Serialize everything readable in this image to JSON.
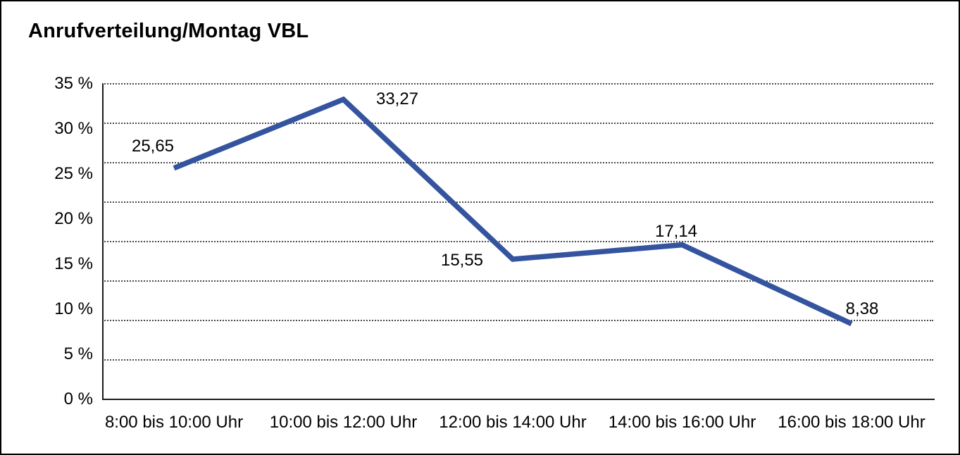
{
  "window": {
    "background_color": "#ffffff",
    "border_color": "#000000"
  },
  "chart_data": {
    "type": "line",
    "title": "Anrufverteilung/Montag VBL",
    "categories": [
      "8:00 bis 10:00 Uhr",
      "10:00 bis 12:00 Uhr",
      "12:00 bis 14:00 Uhr",
      "14:00 bis 16:00 Uhr",
      "16:00 bis 18:00 Uhr"
    ],
    "values": [
      25.65,
      33.27,
      15.55,
      17.14,
      8.38
    ],
    "value_labels": [
      "25,65",
      "33,27",
      "15,55",
      "17,14",
      "8,38"
    ],
    "unit": "%",
    "y_ticks": [
      35,
      30,
      25,
      20,
      15,
      10,
      5,
      0
    ],
    "y_tick_labels": [
      "35 %",
      "30 %",
      "25 %",
      "20 %",
      "15 %",
      "10 %",
      "5 %",
      "0 %"
    ],
    "ylim": [
      0,
      35
    ],
    "xlabel": "",
    "ylabel": "",
    "grid": "horizontal-dotted",
    "legend": "none",
    "series_name": "Anrufverteilung Montag VBL",
    "line_color": "#35549F",
    "axis_color": "#1a1a1a",
    "grid_color": "#4a4a4a",
    "text_color": "#000000"
  }
}
